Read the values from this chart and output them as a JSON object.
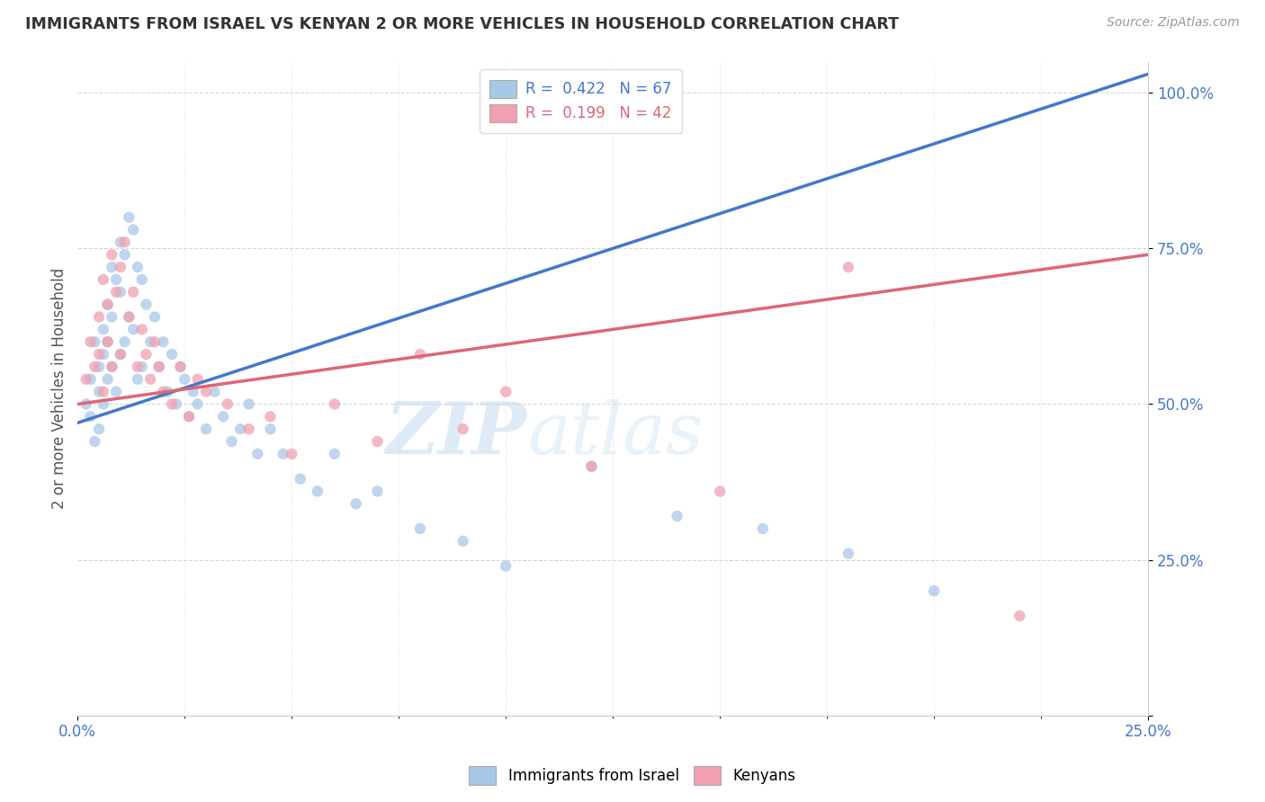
{
  "title": "IMMIGRANTS FROM ISRAEL VS KENYAN 2 OR MORE VEHICLES IN HOUSEHOLD CORRELATION CHART",
  "source": "Source: ZipAtlas.com",
  "ylabel": "2 or more Vehicles in Household",
  "yticks": [
    "",
    "25.0%",
    "50.0%",
    "75.0%",
    "100.0%"
  ],
  "ytick_vals": [
    0.0,
    0.25,
    0.5,
    0.75,
    1.0
  ],
  "xmin": 0.0,
  "xmax": 0.25,
  "ymin": 0.0,
  "ymax": 1.05,
  "R_blue": 0.422,
  "N_blue": 67,
  "R_pink": 0.199,
  "N_pink": 42,
  "blue_color": "#A8C8E8",
  "pink_color": "#F0A0B0",
  "blue_line_color": "#4477CC",
  "pink_line_color": "#DD6677",
  "tick_color": "#4477CC",
  "legend_label_blue": "Immigrants from Israel",
  "legend_label_pink": "Kenyans",
  "watermark_zip": "ZIP",
  "watermark_atlas": "atlas",
  "blue_line_x0": 0.0,
  "blue_line_y0": 0.47,
  "blue_line_x1": 0.25,
  "blue_line_y1": 1.03,
  "pink_line_x0": 0.0,
  "pink_line_y0": 0.5,
  "pink_line_x1": 0.25,
  "pink_line_y1": 0.74,
  "blue_x": [
    0.002,
    0.003,
    0.003,
    0.004,
    0.004,
    0.005,
    0.005,
    0.005,
    0.006,
    0.006,
    0.006,
    0.007,
    0.007,
    0.007,
    0.008,
    0.008,
    0.008,
    0.009,
    0.009,
    0.01,
    0.01,
    0.01,
    0.011,
    0.011,
    0.012,
    0.012,
    0.013,
    0.013,
    0.014,
    0.014,
    0.015,
    0.015,
    0.016,
    0.017,
    0.018,
    0.019,
    0.02,
    0.021,
    0.022,
    0.023,
    0.024,
    0.025,
    0.026,
    0.027,
    0.028,
    0.03,
    0.032,
    0.034,
    0.036,
    0.038,
    0.04,
    0.042,
    0.045,
    0.048,
    0.052,
    0.056,
    0.06,
    0.065,
    0.07,
    0.08,
    0.09,
    0.1,
    0.12,
    0.14,
    0.16,
    0.18,
    0.2
  ],
  "blue_y": [
    0.5,
    0.54,
    0.48,
    0.6,
    0.44,
    0.52,
    0.56,
    0.46,
    0.62,
    0.58,
    0.5,
    0.66,
    0.6,
    0.54,
    0.72,
    0.64,
    0.56,
    0.7,
    0.52,
    0.76,
    0.68,
    0.58,
    0.74,
    0.6,
    0.8,
    0.64,
    0.78,
    0.62,
    0.72,
    0.54,
    0.7,
    0.56,
    0.66,
    0.6,
    0.64,
    0.56,
    0.6,
    0.52,
    0.58,
    0.5,
    0.56,
    0.54,
    0.48,
    0.52,
    0.5,
    0.46,
    0.52,
    0.48,
    0.44,
    0.46,
    0.5,
    0.42,
    0.46,
    0.42,
    0.38,
    0.36,
    0.42,
    0.34,
    0.36,
    0.3,
    0.28,
    0.24,
    0.4,
    0.32,
    0.3,
    0.26,
    0.2
  ],
  "pink_x": [
    0.002,
    0.003,
    0.004,
    0.005,
    0.005,
    0.006,
    0.006,
    0.007,
    0.007,
    0.008,
    0.008,
    0.009,
    0.01,
    0.01,
    0.011,
    0.012,
    0.013,
    0.014,
    0.015,
    0.016,
    0.017,
    0.018,
    0.019,
    0.02,
    0.022,
    0.024,
    0.026,
    0.028,
    0.03,
    0.035,
    0.04,
    0.045,
    0.05,
    0.06,
    0.07,
    0.08,
    0.09,
    0.1,
    0.12,
    0.15,
    0.18,
    0.22
  ],
  "pink_y": [
    0.54,
    0.6,
    0.56,
    0.64,
    0.58,
    0.7,
    0.52,
    0.66,
    0.6,
    0.74,
    0.56,
    0.68,
    0.72,
    0.58,
    0.76,
    0.64,
    0.68,
    0.56,
    0.62,
    0.58,
    0.54,
    0.6,
    0.56,
    0.52,
    0.5,
    0.56,
    0.48,
    0.54,
    0.52,
    0.5,
    0.46,
    0.48,
    0.42,
    0.5,
    0.44,
    0.58,
    0.46,
    0.52,
    0.4,
    0.36,
    0.72,
    0.16
  ]
}
